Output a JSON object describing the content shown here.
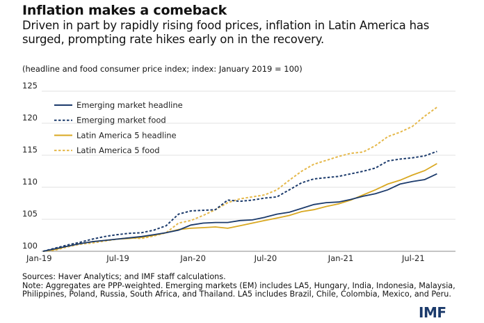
{
  "header": {
    "title": "Inflation makes a comeback",
    "subtitle": "Driven in part by rapidly rising food prices, inflation in Latin America has surged, prompting rate hikes early on in the recovery.",
    "units": "(headline and food consumer price index; index: January 2019 = 100)"
  },
  "chart_data": {
    "type": "line",
    "title": "Inflation makes a comeback",
    "ylabel": "",
    "xlabel": "",
    "ylim": [
      100,
      125
    ],
    "yticks": [
      100,
      105,
      110,
      115,
      120,
      125
    ],
    "xtick_labels": [
      "Jan-19",
      "Jul-19",
      "Jan-20",
      "Jul-20",
      "Jan-21",
      "Jul-21"
    ],
    "x": [
      "2019-01",
      "2019-02",
      "2019-03",
      "2019-04",
      "2019-05",
      "2019-06",
      "2019-07",
      "2019-08",
      "2019-09",
      "2019-10",
      "2019-11",
      "2019-12",
      "2020-01",
      "2020-02",
      "2020-03",
      "2020-04",
      "2020-05",
      "2020-06",
      "2020-07",
      "2020-08",
      "2020-09",
      "2020-10",
      "2020-11",
      "2020-12",
      "2021-01",
      "2021-02",
      "2021-03",
      "2021-04",
      "2021-05",
      "2021-06",
      "2021-07",
      "2021-08",
      "2021-09"
    ],
    "grid": "horizontal",
    "legend_position": "top-left",
    "series": [
      {
        "name": "Emerging market headline",
        "color": "#1b3a6b",
        "style": "solid",
        "values": [
          100,
          100.4,
          100.8,
          101.2,
          101.5,
          101.7,
          101.9,
          102.1,
          102.3,
          102.6,
          102.9,
          103.3,
          104.1,
          104.4,
          104.5,
          104.5,
          104.8,
          104.9,
          105.3,
          105.8,
          106.1,
          106.7,
          107.3,
          107.6,
          107.7,
          108.1,
          108.6,
          109.0,
          109.6,
          110.5,
          110.9,
          111.2,
          112.1
        ]
      },
      {
        "name": "Emerging market food",
        "color": "#1b3a6b",
        "style": "dashed",
        "values": [
          100,
          100.5,
          101.0,
          101.4,
          101.9,
          102.3,
          102.6,
          102.8,
          102.9,
          103.3,
          104.0,
          105.8,
          106.3,
          106.4,
          106.5,
          108.0,
          107.8,
          108.0,
          108.3,
          108.5,
          109.6,
          110.7,
          111.3,
          111.5,
          111.7,
          112.1,
          112.5,
          113.0,
          114.1,
          114.4,
          114.6,
          114.9,
          115.6
        ]
      },
      {
        "name": "Latin America 5 headline",
        "color": "#d9a821",
        "style": "solid",
        "values": [
          100,
          100.3,
          100.8,
          101.2,
          101.5,
          101.7,
          101.9,
          102.0,
          102.2,
          102.5,
          102.9,
          103.4,
          103.6,
          103.7,
          103.8,
          103.6,
          104.0,
          104.4,
          104.8,
          105.2,
          105.6,
          106.2,
          106.5,
          107.0,
          107.4,
          108.0,
          108.8,
          109.6,
          110.5,
          111.1,
          111.9,
          112.6,
          113.7
        ]
      },
      {
        "name": "Latin America 5 food",
        "color": "#e5b84a",
        "style": "dashed",
        "values": [
          100,
          100.2,
          100.7,
          101.1,
          101.3,
          101.6,
          101.9,
          102.1,
          102.0,
          102.4,
          102.9,
          104.4,
          104.8,
          105.6,
          106.5,
          107.6,
          108.2,
          108.5,
          108.8,
          109.6,
          111.1,
          112.5,
          113.6,
          114.2,
          114.8,
          115.3,
          115.5,
          116.5,
          117.9,
          118.6,
          119.5,
          121.1,
          122.5
        ]
      }
    ]
  },
  "footer": {
    "sources": "Sources: Haver Analytics; and IMF staff calculations.",
    "note": "Note: Aggregates are PPP-weighted. Emerging markets (EM) includes LA5, Hungary, India, Indonesia, Malaysia, Philippines, Poland, Russia, South Africa, and Thailand. LA5 includes Brazil, Chile, Colombia, Mexico, and Peru.",
    "logo": "IMF"
  }
}
